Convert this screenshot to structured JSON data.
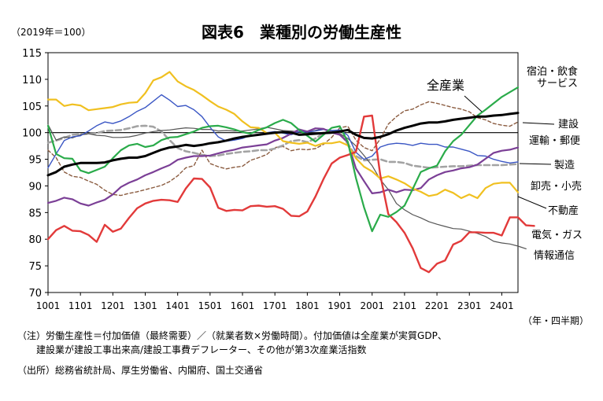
{
  "chart_data": {
    "type": "line",
    "title": "図表6　業種別の労働生産性",
    "unit_label": "（2019年＝100）",
    "x_axis_label": "（年・四半期）",
    "x_tick_labels": [
      "1001",
      "1101",
      "1201",
      "1301",
      "1401",
      "1501",
      "1601",
      "1701",
      "1801",
      "1901",
      "2001",
      "2101",
      "2201",
      "2301",
      "2401"
    ],
    "x_range": [
      0,
      58
    ],
    "ylim": [
      70,
      115
    ],
    "y_ticks": [
      70,
      75,
      80,
      85,
      90,
      95,
      100,
      105,
      110,
      115
    ],
    "reference_line": 100,
    "series": [
      {
        "name": "全産業",
        "color": "#000000",
        "style": "solid",
        "width": 3.0,
        "values": [
          92.0,
          92.6,
          93.6,
          94.0,
          94.3,
          94.3,
          94.3,
          94.4,
          94.8,
          95.1,
          95.3,
          95.3,
          95.6,
          96.2,
          96.8,
          97.2,
          97.4,
          97.7,
          97.5,
          97.7,
          98.0,
          98.2,
          98.5,
          98.9,
          99.2,
          99.4,
          99.6,
          99.8,
          100.0,
          100.1,
          100.0,
          99.6,
          99.7,
          99.8,
          99.9,
          100.0,
          100.2,
          100.5,
          99.6,
          99.0,
          98.9,
          99.2,
          99.7,
          100.4,
          100.9,
          101.3,
          101.7,
          101.9,
          101.9,
          102.1,
          102.4,
          102.6,
          102.8,
          103.0,
          103.0,
          103.2,
          103.3,
          103.5,
          103.7
        ]
      },
      {
        "name": "宿泊・飲食サービス",
        "color": "#2aab4a",
        "style": "solid",
        "width": 2.2,
        "values": [
          101.3,
          96.0,
          95.2,
          95.1,
          92.9,
          92.4,
          93.0,
          93.6,
          95.2,
          96.7,
          97.6,
          97.9,
          97.3,
          97.6,
          98.6,
          99.1,
          99.2,
          99.7,
          100.2,
          100.9,
          101.2,
          101.3,
          101.0,
          100.6,
          100.1,
          99.8,
          100.5,
          101.0,
          101.8,
          102.4,
          101.8,
          100.5,
          99.4,
          98.3,
          99.6,
          100.9,
          101.2,
          98.3,
          91.5,
          86.0,
          81.5,
          84.6,
          84.2,
          85.1,
          86.3,
          89.4,
          92.6,
          93.3,
          93.8,
          96.5,
          98.4,
          99.6,
          101.4,
          103.2,
          104.3,
          105.5,
          106.7,
          107.6,
          108.5
        ]
      },
      {
        "name": "建設",
        "color": "#8a5b3f",
        "style": "dashed",
        "width": 1.4,
        "values": [
          96.7,
          95.3,
          92.6,
          91.8,
          91.6,
          90.9,
          90.3,
          89.2,
          88.4,
          88.2,
          88.6,
          88.9,
          89.3,
          89.7,
          90.1,
          90.8,
          91.9,
          93.4,
          93.8,
          96.7,
          94.2,
          93.6,
          93.2,
          93.5,
          93.7,
          94.8,
          95.3,
          95.9,
          97.2,
          97.4,
          96.6,
          96.9,
          96.8,
          97.0,
          97.8,
          99.1,
          100.9,
          101.2,
          98.6,
          97.2,
          96.6,
          98.8,
          101.6,
          103.0,
          104.1,
          104.4,
          105.2,
          105.8,
          105.5,
          105.1,
          104.7,
          104.4,
          103.9,
          102.8,
          102.4,
          101.7,
          101.4,
          101.2,
          102.0
        ]
      },
      {
        "name": "運輸・郵便",
        "color": "#7b3f96",
        "style": "solid",
        "width": 2.2,
        "values": [
          86.8,
          87.2,
          87.8,
          87.5,
          86.7,
          86.3,
          86.9,
          87.4,
          88.4,
          89.8,
          90.6,
          91.2,
          92.0,
          92.6,
          93.3,
          93.9,
          94.9,
          95.3,
          95.6,
          95.6,
          95.7,
          96.1,
          96.5,
          96.8,
          97.2,
          97.4,
          97.6,
          97.8,
          98.5,
          99.0,
          99.8,
          100.6,
          100.2,
          100.8,
          100.7,
          100.0,
          99.6,
          98.2,
          93.3,
          90.9,
          88.6,
          88.8,
          89.3,
          88.8,
          89.3,
          89.2,
          89.6,
          91.2,
          92.0,
          92.6,
          92.9,
          93.3,
          93.5,
          94.0,
          95.1,
          96.2,
          96.6,
          96.8,
          97.2
        ]
      },
      {
        "name": "製造",
        "color": "#a3a3a3",
        "style": "dashed",
        "width": 2.6,
        "values": [
          98.1,
          98.5,
          99.0,
          99.6,
          99.7,
          99.8,
          99.9,
          100.3,
          100.4,
          100.5,
          100.8,
          101.2,
          101.3,
          101.1,
          100.2,
          98.6,
          97.1,
          96.5,
          96.2,
          95.8,
          95.6,
          95.7,
          96.0,
          96.2,
          96.4,
          96.5,
          96.7,
          96.7,
          97.0,
          97.6,
          98.4,
          98.6,
          98.2,
          98.9,
          99.9,
          100.3,
          100.0,
          97.9,
          95.6,
          94.8,
          94.9,
          95.0,
          94.5,
          94.5,
          94.3,
          93.8,
          93.6,
          93.4,
          93.5,
          93.6,
          93.7,
          93.7,
          93.8,
          93.9,
          93.9,
          93.9,
          93.9,
          94.0,
          94.1
        ]
      },
      {
        "name": "卸売・小売",
        "color": "#3a56c4",
        "style": "solid",
        "width": 1.4,
        "values": [
          93.4,
          96.0,
          98.5,
          99.2,
          99.4,
          100.3,
          101.3,
          102.0,
          101.7,
          102.2,
          103.0,
          104.0,
          104.7,
          105.9,
          107.1,
          106.1,
          104.9,
          105.1,
          104.3,
          103.0,
          101.0,
          99.2,
          98.4,
          98.6,
          98.9,
          99.5,
          99.6,
          100.0,
          100.2,
          99.9,
          99.6,
          100.2,
          100.1,
          100.3,
          100.6,
          100.4,
          100.5,
          99.5,
          96.3,
          95.0,
          95.6,
          97.3,
          97.8,
          98.0,
          97.9,
          97.6,
          98.0,
          97.8,
          97.8,
          97.3,
          97.3,
          96.9,
          96.5,
          95.7,
          95.6,
          95.0,
          94.6,
          94.3,
          94.5
        ]
      },
      {
        "name": "不動産",
        "color": "#f0c020",
        "style": "solid",
        "width": 2.2,
        "values": [
          106.2,
          106.2,
          105.0,
          105.3,
          105.1,
          104.2,
          104.4,
          104.6,
          104.8,
          105.3,
          105.6,
          105.7,
          107.4,
          109.8,
          110.4,
          111.4,
          109.6,
          108.7,
          108.0,
          107.0,
          105.9,
          104.9,
          104.3,
          103.5,
          102.1,
          101.0,
          100.9,
          99.9,
          100.0,
          98.4,
          98.1,
          97.9,
          98.1,
          97.5,
          98.0,
          98.0,
          98.3,
          97.6,
          95.2,
          93.6,
          92.7,
          91.4,
          91.8,
          91.2,
          90.5,
          89.5,
          88.9,
          88.1,
          88.4,
          89.3,
          88.7,
          87.7,
          88.4,
          87.7,
          89.6,
          90.4,
          90.6,
          90.6,
          88.8
        ]
      },
      {
        "name": "電気・ガス",
        "color": "#e23a3a",
        "style": "solid",
        "width": 2.4,
        "values": [
          80.0,
          81.7,
          82.5,
          81.6,
          81.5,
          80.8,
          79.5,
          82.7,
          81.4,
          82.0,
          84.0,
          85.8,
          86.7,
          87.2,
          87.4,
          87.3,
          87.0,
          89.5,
          91.4,
          91.3,
          89.7,
          85.9,
          85.3,
          85.5,
          85.4,
          86.2,
          86.3,
          86.1,
          86.2,
          85.7,
          84.4,
          84.3,
          85.2,
          88.0,
          91.3,
          94.2,
          95.3,
          95.8,
          96.4,
          103.0,
          103.2,
          92.1,
          84.7,
          83.2,
          81.2,
          78.3,
          74.6,
          73.8,
          75.4,
          76.0,
          79.0,
          79.7,
          81.3,
          81.3,
          81.2,
          81.2,
          80.7,
          84.1,
          84.1,
          82.6,
          82.5
        ]
      },
      {
        "name": "情報通信",
        "color": "#555555",
        "style": "solid",
        "width": 1.2,
        "values": [
          101.5,
          98.6,
          99.2,
          99.0,
          99.6,
          99.8,
          99.5,
          99.4,
          99.1,
          99.1,
          99.2,
          99.5,
          99.9,
          100.2,
          100.4,
          100.5,
          100.7,
          100.9,
          100.8,
          100.6,
          100.6,
          100.3,
          100.4,
          100.3,
          100.3,
          100.5,
          100.7,
          101.0,
          100.7,
          100.4,
          100.3,
          100.1,
          100.1,
          100.4,
          100.7,
          100.3,
          99.8,
          98.9,
          97.5,
          95.7,
          93.8,
          91.2,
          89.3,
          86.7,
          85.5,
          84.6,
          84.0,
          83.3,
          82.8,
          82.4,
          82.0,
          81.9,
          81.5,
          81.1,
          80.5,
          79.6,
          79.3,
          79.1,
          78.7,
          78.2
        ]
      }
    ],
    "labels": {
      "all_industries": "全産業",
      "hotel_line1": "宿泊・飲食",
      "hotel_line2": "サービス",
      "construction": "建設",
      "transport": "運輸・郵便",
      "manufacturing": "製造",
      "wholesale": "卸売・小売",
      "real_estate": "不動産",
      "electricity": "電気・ガス",
      "info_comm": "情報通信"
    }
  },
  "notes": {
    "note_line1": "（注）労働生産性＝付加価値（最終需要）／（就業者数×労働時間）。付加価値は全産業が実質GDP、",
    "note_line2": "　　建設業が建設工事出来高/建設工事費デフレーター、その他が第3次産業活指数",
    "source": "（出所）総務省統計局、厚生労働省、内閣府、国土交通省"
  }
}
